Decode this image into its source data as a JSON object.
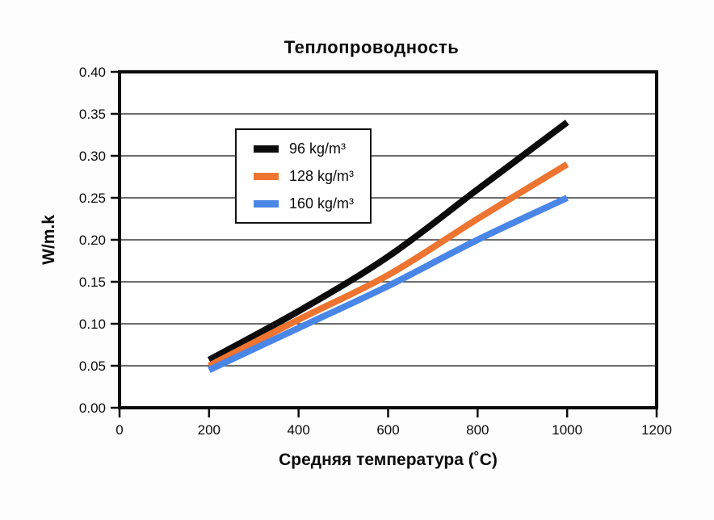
{
  "chart_data": {
    "type": "line",
    "title": "Теплопроводность",
    "xlabel": "Средняя температура (˚C)",
    "ylabel": "W/m.k",
    "x": [
      200,
      400,
      600,
      800,
      1000
    ],
    "series": [
      {
        "name": "96 kg/m³",
        "color": "#0b0b0b",
        "values": [
          0.057,
          0.115,
          0.18,
          0.26,
          0.34
        ]
      },
      {
        "name": "128 kg/m³",
        "color": "#ed7431",
        "values": [
          0.05,
          0.105,
          0.158,
          0.225,
          0.29
        ]
      },
      {
        "name": "160 kg/m³",
        "color": "#4a86e8",
        "values": [
          0.045,
          0.095,
          0.145,
          0.2,
          0.25
        ]
      }
    ],
    "xlim": [
      0,
      1200
    ],
    "ylim": [
      0,
      0.4
    ],
    "xticks": [
      0,
      200,
      400,
      600,
      800,
      1000,
      1200
    ],
    "yticks": [
      0.0,
      0.05,
      0.1,
      0.15,
      0.2,
      0.25,
      0.3,
      0.35,
      0.4
    ],
    "grid": "horizontal",
    "legend_position": "upper-left-inside",
    "line_width": 8,
    "gridline_color": "#3c3c3c",
    "axis_color": "#0b0b0b",
    "background_color": "#ffffff"
  }
}
